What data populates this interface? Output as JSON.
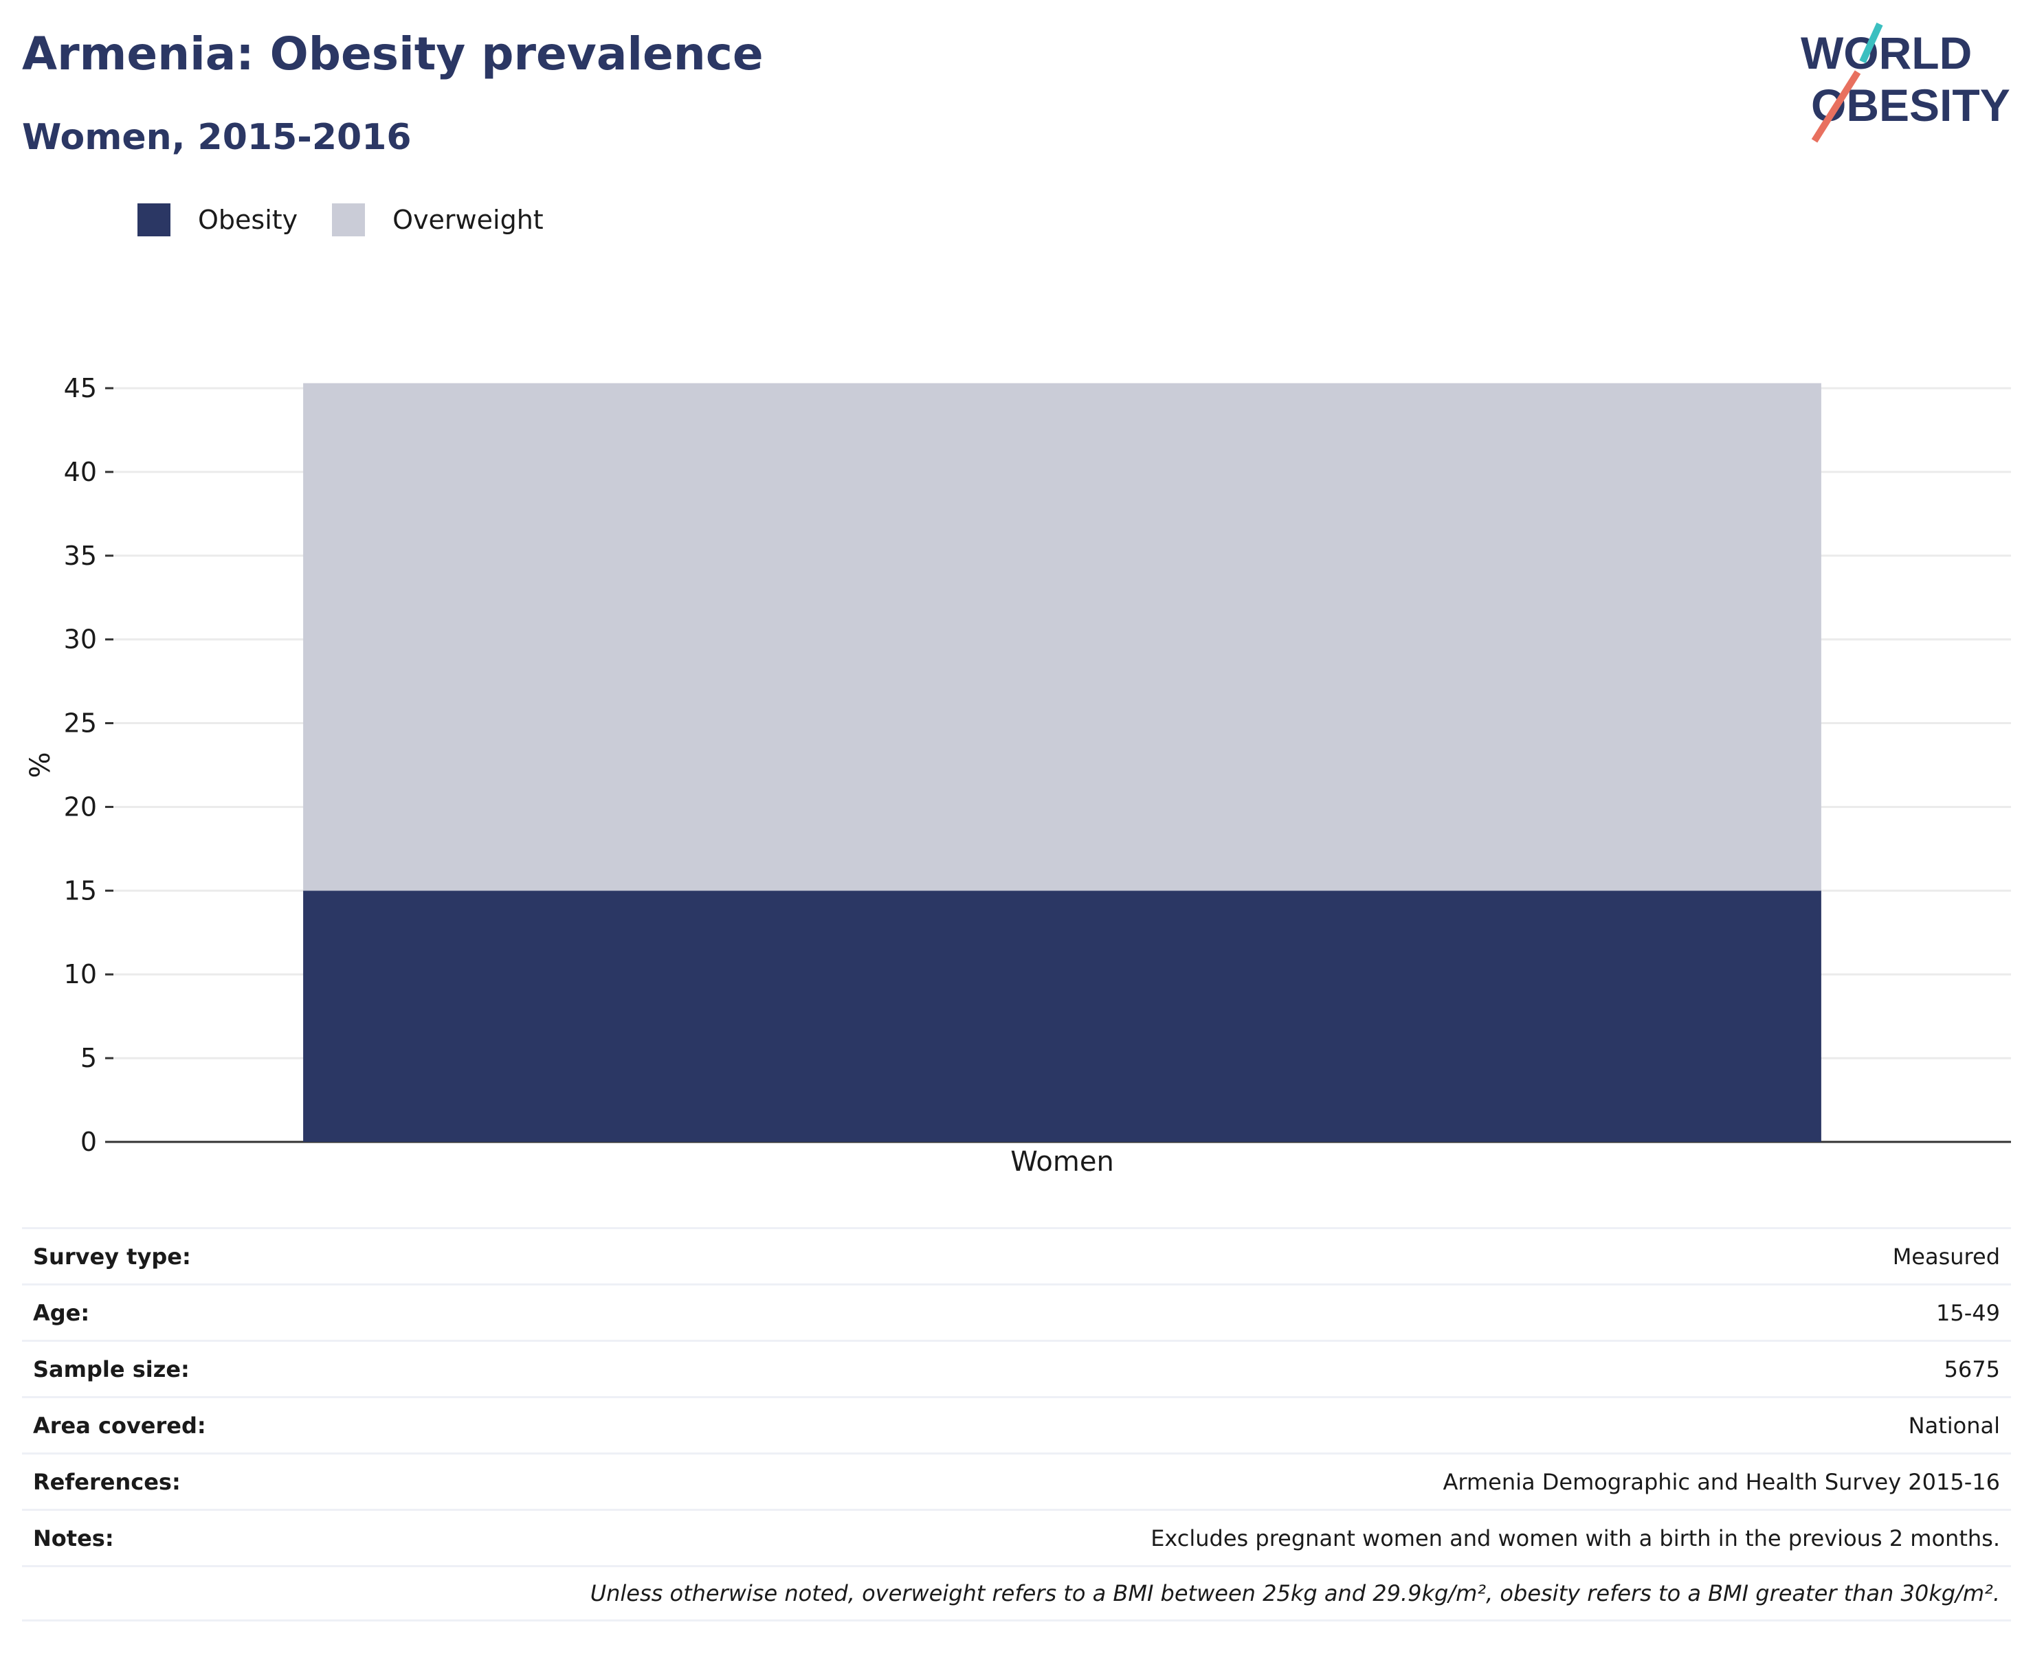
{
  "header": {
    "title": "Armenia: Obesity prevalence",
    "subtitle": "Women, 2015-2016",
    "logo_line1": "WORLD",
    "logo_line2": "OBESITY"
  },
  "colors": {
    "obesity": "#2b3764",
    "overweight": "#caccd7",
    "title": "#2b3764",
    "logo_teal": "#3bbfc0",
    "logo_coral": "#e8705f"
  },
  "chart_data": {
    "type": "bar",
    "stacked": true,
    "categories": [
      "Women"
    ],
    "series": [
      {
        "name": "Obesity",
        "values": [
          15
        ]
      },
      {
        "name": "Overweight",
        "values": [
          30.3
        ]
      }
    ],
    "ylabel": "%",
    "xlabel": "",
    "ylim": [
      0,
      45
    ],
    "yticks": [
      0,
      5,
      10,
      15,
      20,
      25,
      30,
      35,
      40,
      45
    ],
    "grid": true,
    "legend": "top-left"
  },
  "info": [
    {
      "label": "Survey type:",
      "value": "Measured"
    },
    {
      "label": "Age:",
      "value": "15-49"
    },
    {
      "label": "Sample size:",
      "value": "5675"
    },
    {
      "label": "Area covered:",
      "value": "National"
    },
    {
      "label": "References:",
      "value": "Armenia Demographic and Health Survey 2015-16"
    },
    {
      "label": "Notes:",
      "value": "Excludes pregnant women and women with a birth in the previous 2 months."
    }
  ],
  "footnote": "Unless otherwise noted, overweight refers to a BMI between 25kg and 29.9kg/m², obesity refers to a BMI greater than 30kg/m²."
}
